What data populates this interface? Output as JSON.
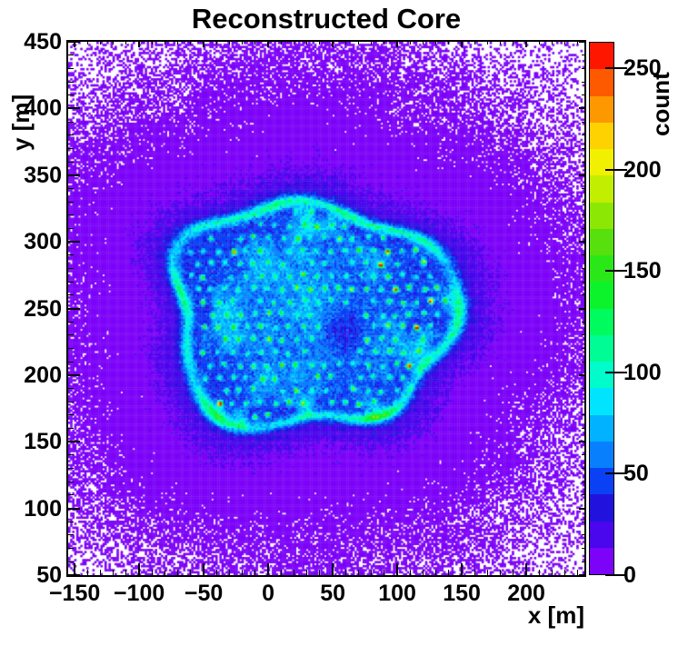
{
  "chart_data": {
    "type": "heatmap",
    "title": "Reconstructed Core",
    "xlabel": "x [m]",
    "ylabel": "y [m]",
    "zlabel": "count",
    "xlim": [
      -155,
      245
    ],
    "ylim": [
      50,
      450
    ],
    "zlim": [
      0,
      263
    ],
    "x_ticks": [
      -150,
      -100,
      -50,
      0,
      50,
      100,
      150,
      200
    ],
    "y_ticks": [
      50,
      100,
      150,
      200,
      250,
      300,
      350,
      400,
      450
    ],
    "z_ticks": [
      0,
      50,
      100,
      150,
      200,
      250
    ],
    "minor_tick_step": 10,
    "grid": false,
    "legend_position": "right-colorbar",
    "n_color_levels": 20,
    "palette": [
      "#7c02f8",
      "#4a06ec",
      "#2113dd",
      "#0b41f5",
      "#0880fe",
      "#00b2ff",
      "#00e4ff",
      "#00fcca",
      "#00fc94",
      "#00fb5e",
      "#0df32b",
      "#2ae818",
      "#57e00d",
      "#8ce704",
      "#c2ee01",
      "#f0f000",
      "#fdd200",
      "#fd9800",
      "#fd5a00",
      "#fe1600"
    ],
    "zero_bin_color": "#ffffff",
    "frame_color": "#000000",
    "background_color": "#ffffff",
    "bins": {
      "nx": 256,
      "ny": 264
    },
    "distribution": {
      "seed": 1337,
      "description": "2D histogram of reconstructed shower core positions: sparse low-count halo (violet, with empty white bins toward the edges), a bright rounded-square cluster centered near (33, 246) m with a cyan high-count rim, an interior blue plateau with cyan haze patches, a low-count hole near (57, 233) m, and a hexagonal array of high-count detector spots (cyan-green, a few orange-red hot spots biased to the right side).",
      "background": {
        "amplitude": 20,
        "falloff_radius_m": 80,
        "falloff_power": 1.2,
        "patchiness": 0.6
      },
      "blob": {
        "center_x_m": 33,
        "center_y_m": 246,
        "half_width_m": 107,
        "half_height_m": 82,
        "squareness": 2.6,
        "edge_wobble": [
          [
            3,
            0.065,
            1.2
          ],
          [
            5,
            0.05,
            0.4
          ],
          [
            7,
            0.035,
            2.8
          ]
        ],
        "interior_level": 44,
        "interior_patch_amp": 52
      },
      "ring": {
        "position": 0.985,
        "width": 0.05,
        "amplitude": 58
      },
      "halo": {
        "amplitude": 28,
        "width": 0.22
      },
      "hole": {
        "x_m": 57,
        "y_m": 233,
        "radius_m": 17,
        "depth": 24
      },
      "detector_grid": {
        "spacing_m": 11,
        "max_radius": 0.9,
        "dot_sigma_m": 1.35,
        "amp_base": 55,
        "amp_random": 95,
        "hot_fraction": 0.03,
        "hot_amp": 175,
        "hot_amp_random": 85,
        "missing_fraction": 0.06,
        "right_bias": 0.3,
        "jitter_m": 1.3
      }
    }
  }
}
